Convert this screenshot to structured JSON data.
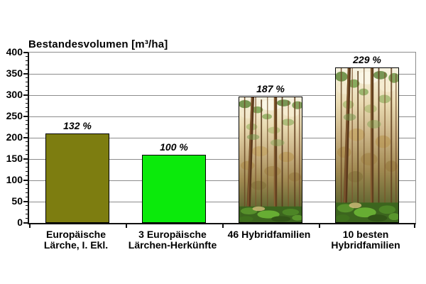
{
  "chart_data": {
    "type": "bar",
    "title": "Bestandesvolumen [m³/ha]",
    "categories": [
      [
        "Europäische",
        "Lärche, I. Ekl."
      ],
      [
        "3 Europäische",
        "Lärchen-Herkünfte"
      ],
      [
        "46 Hybridfamilien"
      ],
      [
        "10 besten",
        "Hybridfamilien"
      ]
    ],
    "values": [
      210,
      160,
      297,
      365
    ],
    "value_labels": [
      "132 %",
      "100 %",
      "187 %",
      "229 %"
    ],
    "ylabel": "Bestandesvolumen [m³/ha]",
    "xlabel": "",
    "ylim": [
      0,
      400
    ],
    "y_ticks": [
      0,
      50,
      100,
      150,
      200,
      250,
      300,
      350,
      400
    ],
    "y_minor_step": 10,
    "grid": true,
    "legend": "none",
    "bar_fills": [
      "#7d7d10",
      "#0bea0b",
      "forest-photo",
      "forest-photo"
    ],
    "colors": {
      "grid": "#8c8c8c",
      "axis": "#111111",
      "text": "#000000",
      "bar_border": "#000000",
      "background": "#ffffff"
    }
  }
}
